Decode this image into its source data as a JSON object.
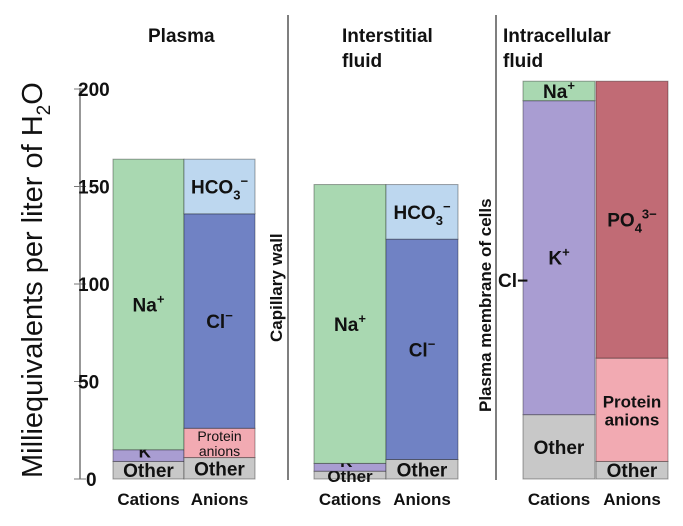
{
  "chart_data": {
    "type": "bar",
    "stacked": true,
    "ylabel": "Milliequivalents per liter of H2O",
    "ylabel_parts": {
      "base": "Milliequivalents per liter of H",
      "sub": "2",
      "end": "O"
    },
    "ylim": [
      0,
      200
    ],
    "yticks": [
      "0",
      "50",
      "100",
      "150",
      "200"
    ],
    "grid": false,
    "separators": [
      "Capillary wall",
      "Plasma membrane of cells"
    ],
    "stray_label": "Cl−",
    "compartments": [
      {
        "title": [
          "Plasma"
        ],
        "bars": [
          {
            "category": "Cations",
            "segments": [
              {
                "label": "Other",
                "value": 9,
                "color": "#c8c8c8"
              },
              {
                "label": "K+",
                "base": "K",
                "sup": "+",
                "value": 6,
                "color": "#a99dd2"
              },
              {
                "label": "Na+",
                "base": "Na",
                "sup": "+",
                "value": 149,
                "color": "#a9d8b1"
              }
            ]
          },
          {
            "category": "Anions",
            "segments": [
              {
                "label": "Other",
                "value": 11,
                "color": "#c8c8c8"
              },
              {
                "label": "Protein anions",
                "lines": [
                  "Protein",
                  "anions"
                ],
                "value": 15,
                "color": "#f2aab2",
                "small": true
              },
              {
                "label": "Cl−",
                "base": "Cl",
                "sup": "−",
                "value": 110,
                "color": "#7082c4"
              },
              {
                "label": "HCO3−",
                "base": "HCO",
                "sub": "3",
                "sup": "−",
                "value": 28,
                "color": "#bdd7ef"
              }
            ]
          }
        ]
      },
      {
        "title": [
          "Interstitial",
          "fluid"
        ],
        "bars": [
          {
            "category": "Cations",
            "segments": [
              {
                "label": "Other",
                "value": 4,
                "color": "#c8c8c8"
              },
              {
                "label": "K+",
                "base": "K",
                "sup": "+",
                "value": 4,
                "color": "#a99dd2"
              },
              {
                "label": "Na+",
                "base": "Na",
                "sup": "+",
                "value": 143,
                "color": "#a9d8b1"
              }
            ]
          },
          {
            "category": "Anions",
            "segments": [
              {
                "label": "Other",
                "value": 10,
                "color": "#c8c8c8"
              },
              {
                "label": "Cl−",
                "base": "Cl",
                "sup": "−",
                "value": 113,
                "color": "#7082c4"
              },
              {
                "label": "HCO3−",
                "base": "HCO",
                "sub": "3",
                "sup": "−",
                "value": 28,
                "color": "#bdd7ef"
              }
            ]
          }
        ]
      },
      {
        "title": [
          "Intracellular",
          "fluid"
        ],
        "bars": [
          {
            "category": "Cations",
            "segments": [
              {
                "label": "Other",
                "value": 33,
                "color": "#c8c8c8"
              },
              {
                "label": "K+",
                "base": "K",
                "sup": "+",
                "value": 161,
                "color": "#a99dd2"
              },
              {
                "label": "Na+",
                "base": "Na",
                "sup": "+",
                "value": 10,
                "color": "#a9d8b1"
              }
            ]
          },
          {
            "category": "Anions",
            "segments": [
              {
                "label": "Other",
                "value": 9,
                "color": "#c8c8c8"
              },
              {
                "label": "Protein anions",
                "lines": [
                  "Protein",
                  "anions"
                ],
                "value": 53,
                "color": "#f2aab2"
              },
              {
                "label": "PO43−",
                "base": "PO",
                "sub": "4",
                "sup": "3−",
                "value": 142,
                "color": "#c16b75"
              }
            ]
          }
        ]
      }
    ]
  }
}
